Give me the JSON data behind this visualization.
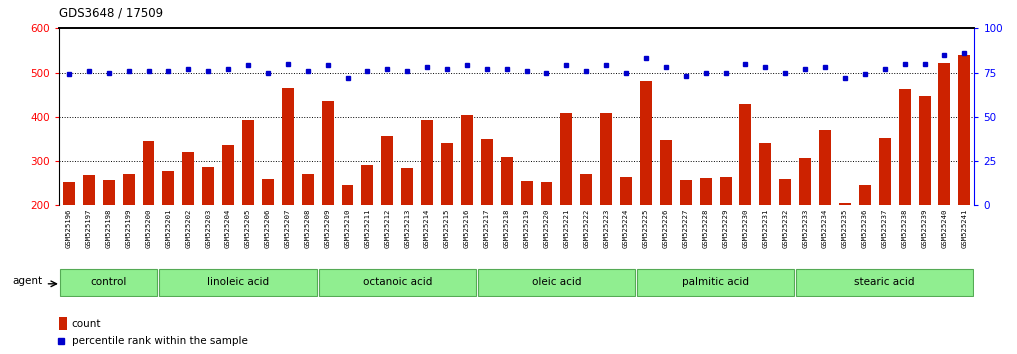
{
  "title": "GDS3648 / 17509",
  "samples": [
    "GSM525196",
    "GSM525197",
    "GSM525198",
    "GSM525199",
    "GSM525200",
    "GSM525201",
    "GSM525202",
    "GSM525203",
    "GSM525204",
    "GSM525205",
    "GSM525206",
    "GSM525207",
    "GSM525208",
    "GSM525209",
    "GSM525210",
    "GSM525211",
    "GSM525212",
    "GSM525213",
    "GSM525214",
    "GSM525215",
    "GSM525216",
    "GSM525217",
    "GSM525218",
    "GSM525219",
    "GSM525220",
    "GSM525221",
    "GSM525222",
    "GSM525223",
    "GSM525224",
    "GSM525225",
    "GSM525226",
    "GSM525227",
    "GSM525228",
    "GSM525229",
    "GSM525230",
    "GSM525231",
    "GSM525232",
    "GSM525233",
    "GSM525234",
    "GSM525235",
    "GSM525236",
    "GSM525237",
    "GSM525238",
    "GSM525239",
    "GSM525240",
    "GSM525241"
  ],
  "counts": [
    253,
    268,
    258,
    270,
    345,
    278,
    320,
    287,
    337,
    393,
    260,
    465,
    270,
    435,
    246,
    290,
    357,
    285,
    393,
    340,
    405,
    350,
    310,
    256,
    253,
    408,
    270,
    408,
    265,
    480,
    347,
    258,
    262,
    265,
    430,
    340,
    259,
    308,
    370,
    205,
    247,
    352,
    462,
    447,
    522,
    540
  ],
  "percentile_ranks": [
    74,
    76,
    75,
    76,
    76,
    76,
    77,
    76,
    77,
    79,
    75,
    80,
    76,
    79,
    72,
    76,
    77,
    76,
    78,
    77,
    79,
    77,
    77,
    76,
    75,
    79,
    76,
    79,
    75,
    83,
    78,
    73,
    75,
    75,
    80,
    78,
    75,
    77,
    78,
    72,
    74,
    77,
    80,
    80,
    85,
    86
  ],
  "groups": [
    {
      "label": "control",
      "start": 0,
      "end": 4
    },
    {
      "label": "linoleic acid",
      "start": 5,
      "end": 12
    },
    {
      "label": "octanoic acid",
      "start": 13,
      "end": 20
    },
    {
      "label": "oleic acid",
      "start": 21,
      "end": 28
    },
    {
      "label": "palmitic acid",
      "start": 29,
      "end": 36
    },
    {
      "label": "stearic acid",
      "start": 37,
      "end": 45
    }
  ],
  "bar_color": "#cc2200",
  "dot_color": "#0000cc",
  "group_fill": "#90ee90",
  "group_border": "#55aa55",
  "xlabel_bg": "#d8d8d8",
  "ylim_left": [
    200,
    600
  ],
  "ylim_right": [
    0,
    100
  ],
  "yticks_left": [
    200,
    300,
    400,
    500,
    600
  ],
  "yticks_right": [
    0,
    25,
    50,
    75,
    100
  ],
  "grid_values": [
    300,
    400,
    500
  ],
  "bar_width": 0.6,
  "legend_count_label": "count",
  "legend_pct_label": "percentile rank within the sample",
  "agent_label": "agent"
}
